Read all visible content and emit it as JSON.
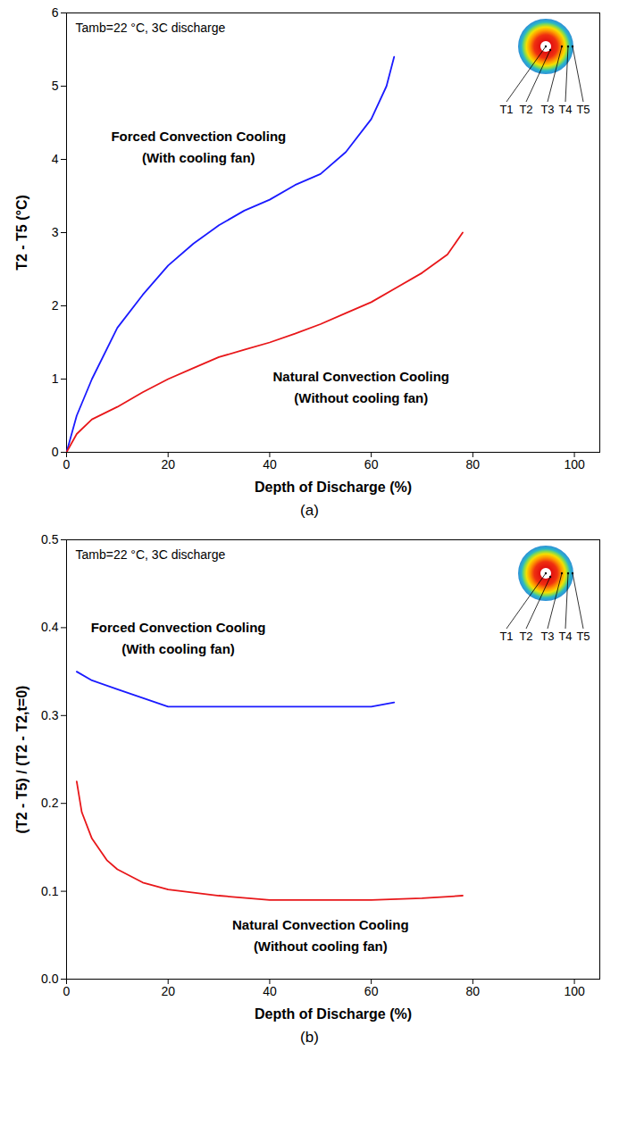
{
  "chart_data": [
    {
      "type": "line",
      "title": "(a)",
      "annotation": "Tamb=22 °C, 3C discharge",
      "inset_labels": [
        "T1",
        "T2",
        "T3",
        "T4",
        "T5"
      ],
      "x_label": "Depth of Discharge (%)",
      "y_label": "T2 - T5 (°C)",
      "xlim": [
        0,
        105
      ],
      "xticks": [
        0,
        20,
        40,
        60,
        80,
        100
      ],
      "ylim": [
        0,
        6
      ],
      "yticks": [
        0,
        1,
        2,
        3,
        4,
        5,
        6
      ],
      "series": [
        {
          "name": "Forced Convection Cooling (With cooling fan)",
          "color": "#1a1aff",
          "x": [
            0,
            2,
            5,
            10,
            15,
            20,
            25,
            30,
            35,
            40,
            45,
            50,
            55,
            60,
            63,
            64.5
          ],
          "values": [
            0,
            0.5,
            1.0,
            1.7,
            2.15,
            2.55,
            2.85,
            3.1,
            3.3,
            3.45,
            3.65,
            3.8,
            4.1,
            4.55,
            5.0,
            5.4
          ]
        },
        {
          "name": "Natural Convection Cooling (Without cooling fan)",
          "color": "#e8171a",
          "x": [
            0,
            2,
            5,
            10,
            15,
            20,
            25,
            30,
            35,
            40,
            45,
            50,
            55,
            60,
            65,
            70,
            75,
            78
          ],
          "values": [
            0,
            0.25,
            0.45,
            0.62,
            0.82,
            1.0,
            1.15,
            1.3,
            1.4,
            1.5,
            1.62,
            1.75,
            1.9,
            2.05,
            2.25,
            2.45,
            2.7,
            3.0
          ]
        }
      ]
    },
    {
      "type": "line",
      "title": "(b)",
      "annotation": "Tamb=22 °C, 3C discharge",
      "inset_labels": [
        "T1",
        "T2",
        "T3",
        "T4",
        "T5"
      ],
      "x_label": "Depth of Discharge (%)",
      "y_label": "(T2 - T5) / (T2 - T2,t=0)",
      "xlim": [
        0,
        105
      ],
      "xticks": [
        0,
        20,
        40,
        60,
        80,
        100
      ],
      "ylim": [
        0,
        0.5
      ],
      "yticks": [
        {
          "value": 0,
          "label": "0.0"
        },
        {
          "value": 0.1,
          "label": "0.1"
        },
        {
          "value": 0.2,
          "label": "0.2"
        },
        {
          "value": 0.3,
          "label": "0.3"
        },
        {
          "value": 0.4,
          "label": "0.4"
        },
        {
          "value": 0.5,
          "label": "0.5"
        }
      ],
      "series": [
        {
          "name": "Forced Convection Cooling (With cooling fan)",
          "color": "#1a1aff",
          "x": [
            2,
            5,
            10,
            15,
            20,
            30,
            40,
            50,
            60,
            64.5
          ],
          "values": [
            0.35,
            0.34,
            0.33,
            0.32,
            0.31,
            0.31,
            0.31,
            0.31,
            0.31,
            0.315
          ]
        },
        {
          "name": "Natural Convection Cooling (Without cooling fan)",
          "color": "#e8171a",
          "x": [
            2,
            3,
            5,
            8,
            10,
            15,
            20,
            30,
            40,
            50,
            60,
            70,
            78
          ],
          "values": [
            0.225,
            0.19,
            0.16,
            0.135,
            0.125,
            0.11,
            0.102,
            0.095,
            0.09,
            0.09,
            0.09,
            0.092,
            0.095
          ]
        }
      ]
    }
  ]
}
